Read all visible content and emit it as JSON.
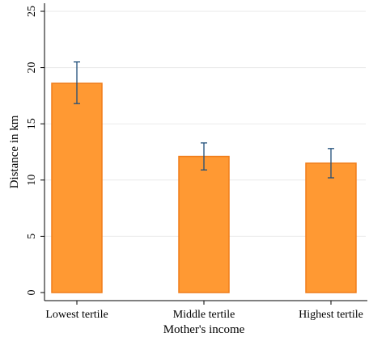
{
  "chart_data": {
    "type": "bar",
    "categories": [
      "Lowest tertile",
      "Middle tertile",
      "Highest tertile"
    ],
    "values": [
      18.6,
      12.1,
      11.5
    ],
    "error_bars": [
      {
        "low": 16.8,
        "high": 20.5
      },
      {
        "low": 10.9,
        "high": 13.3
      },
      {
        "low": 10.2,
        "high": 12.8
      }
    ],
    "xlabel": "Mother's income",
    "ylabel": "Distance in km",
    "ylim": [
      0,
      25
    ],
    "yticks": [
      0,
      5,
      10,
      15,
      20,
      25
    ],
    "grid": true,
    "colors": {
      "bar_fill": "#FF9933",
      "bar_stroke": "#F07D1A",
      "error_bar": "#1F4E79",
      "grid": "#EAEAEA",
      "axis": "#000000"
    }
  }
}
